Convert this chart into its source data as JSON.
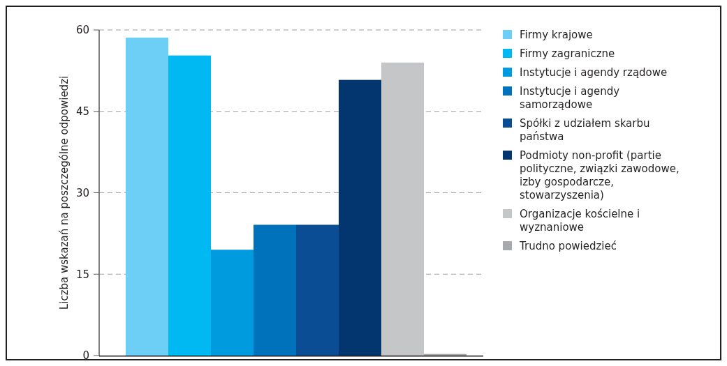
{
  "chart_data": {
    "type": "bar",
    "ylabel": "Liczba wskazań na poszczególne odpowiedzi",
    "categories": [
      null,
      null,
      null,
      null,
      null,
      null,
      null,
      null
    ],
    "ylim": [
      0,
      60
    ],
    "yticks": [
      0,
      15,
      30,
      45,
      60
    ],
    "grid": "y",
    "legend": "right",
    "series": [
      {
        "name": "Firmy krajowe",
        "color": "#6dcff6",
        "values": [
          58.6,
          null,
          null,
          null,
          null,
          null,
          null,
          null
        ]
      },
      {
        "name": "Firmy zagraniczne",
        "color": "#00b9f2",
        "values": [
          null,
          55.3,
          null,
          null,
          null,
          null,
          null,
          null
        ]
      },
      {
        "name": "Instytucje i agendy rządowe",
        "color": "#009ade",
        "values": [
          null,
          null,
          19.5,
          null,
          null,
          null,
          null,
          null
        ]
      },
      {
        "name": "Instytucje i agendy samorządowe",
        "color": "#0072bc",
        "values": [
          null,
          null,
          null,
          24.1,
          null,
          null,
          null,
          null
        ]
      },
      {
        "name": "Spółki z udziałem skarbu państwa",
        "color": "#0b4d94",
        "values": [
          null,
          null,
          null,
          null,
          24.1,
          null,
          null,
          null
        ]
      },
      {
        "name": "Podmioty non-profit (partie polityczne, związki zawodowe, izby gospodarcze, stowarzyszenia)",
        "color": "#03356f",
        "values": [
          null,
          null,
          null,
          null,
          null,
          50.8,
          null,
          null
        ]
      },
      {
        "name": "Organizacje kościelne i wyznaniowe",
        "color": "#c5c6c8",
        "values": [
          null,
          null,
          null,
          null,
          null,
          null,
          54.0,
          null
        ]
      },
      {
        "name": "Trudno powiedzieć",
        "color": "#a7a9ac",
        "values": [
          null,
          null,
          null,
          null,
          null,
          null,
          null,
          0.3
        ]
      }
    ]
  }
}
